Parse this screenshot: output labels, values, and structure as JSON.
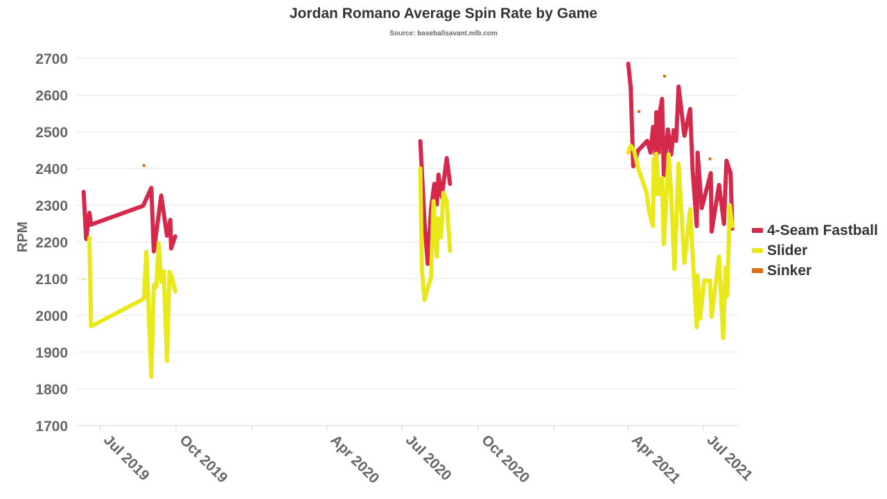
{
  "chart_data": {
    "type": "line",
    "title": "Jordan Romano Average Spin Rate by Game",
    "subtitle": "Source: baseballsavant.mlb.com",
    "ylabel": "RPM",
    "xlabel": "",
    "ylim": [
      1700,
      2700
    ],
    "yticks": [
      1700,
      1800,
      1900,
      2000,
      2100,
      2200,
      2300,
      2400,
      2500,
      2600,
      2700
    ],
    "xlim": [
      "2019-06-02",
      "2021-08-12"
    ],
    "xticks": [
      {
        "date": "2019-07-01",
        "label": "Jul 2019"
      },
      {
        "date": "2019-10-01",
        "label": "Oct 2019"
      },
      {
        "date": "2020-01-01",
        "label": ""
      },
      {
        "date": "2020-04-01",
        "label": "Apr 2020"
      },
      {
        "date": "2020-07-01",
        "label": "Jul 2020"
      },
      {
        "date": "2020-10-01",
        "label": "Oct 2020"
      },
      {
        "date": "2021-01-01",
        "label": ""
      },
      {
        "date": "2021-04-01",
        "label": "Apr 2021"
      },
      {
        "date": "2021-07-01",
        "label": "Jul 2021"
      }
    ],
    "grid": true,
    "legend_position": "right",
    "series": [
      {
        "name": "4-Seam Fastball",
        "color": "#d4294b",
        "points": [
          [
            "2019-06-11",
            2336
          ],
          [
            "2019-06-14",
            2208
          ],
          [
            "2019-06-18",
            2279
          ],
          [
            "2019-06-20",
            2247
          ],
          [
            "2019-08-22",
            2298
          ],
          [
            "2019-09-01",
            2347
          ],
          [
            "2019-09-04",
            2174
          ],
          [
            "2019-09-13",
            2326
          ],
          [
            "2019-09-20",
            2217
          ],
          [
            "2019-09-24",
            2260
          ],
          [
            "2019-09-25",
            2182
          ],
          [
            "2019-09-30",
            2215
          ],
          null,
          [
            "2020-07-23",
            2474
          ],
          [
            "2020-07-28",
            2255
          ],
          [
            "2020-08-01",
            2140
          ],
          [
            "2020-08-05",
            2292
          ],
          [
            "2020-08-09",
            2358
          ],
          [
            "2020-08-12",
            2302
          ],
          [
            "2020-08-14",
            2383
          ],
          [
            "2020-08-18",
            2321
          ],
          [
            "2020-08-20",
            2358
          ],
          [
            "2020-08-24",
            2428
          ],
          [
            "2020-08-28",
            2358
          ],
          null,
          [
            "2021-04-01",
            2685
          ],
          [
            "2021-04-04",
            2619
          ],
          [
            "2021-04-07",
            2406
          ],
          [
            "2021-04-13",
            2449
          ],
          [
            "2021-04-24",
            2475
          ],
          [
            "2021-04-28",
            2443
          ],
          [
            "2021-05-01",
            2513
          ],
          [
            "2021-05-04",
            2438
          ],
          [
            "2021-05-05",
            2553
          ],
          [
            "2021-05-08",
            2443
          ],
          [
            "2021-05-09",
            2551
          ],
          [
            "2021-05-12",
            2589
          ],
          [
            "2021-05-14",
            2381
          ],
          [
            "2021-05-19",
            2506
          ],
          [
            "2021-05-23",
            2438
          ],
          [
            "2021-05-26",
            2504
          ],
          [
            "2021-05-29",
            2475
          ],
          [
            "2021-06-01",
            2623
          ],
          [
            "2021-06-08",
            2489
          ],
          [
            "2021-06-15",
            2562
          ],
          [
            "2021-06-18",
            2394
          ],
          [
            "2021-06-23",
            2243
          ],
          [
            "2021-06-24",
            2443
          ],
          [
            "2021-06-29",
            2292
          ],
          [
            "2021-07-10",
            2387
          ],
          [
            "2021-07-11",
            2228
          ],
          [
            "2021-07-20",
            2355
          ],
          [
            "2021-07-26",
            2249
          ],
          [
            "2021-07-29",
            2421
          ],
          [
            "2021-08-03",
            2387
          ],
          [
            "2021-08-05",
            2236
          ]
        ]
      },
      {
        "name": "Slider",
        "color": "#e8e81a",
        "points": [
          [
            "2019-06-11",
            2098
          ],
          null,
          [
            "2019-06-18",
            2211
          ],
          [
            "2019-06-20",
            1970
          ],
          [
            "2019-08-23",
            2045
          ],
          [
            "2019-08-26",
            2173
          ],
          [
            "2019-09-01",
            1833
          ],
          [
            "2019-09-04",
            2083
          ],
          [
            "2019-09-07",
            2077
          ],
          [
            "2019-09-10",
            2196
          ],
          [
            "2019-09-13",
            2092
          ],
          [
            "2019-09-16",
            2120
          ],
          [
            "2019-09-20",
            1876
          ],
          [
            "2019-09-23",
            2118
          ],
          [
            "2019-09-26",
            2105
          ],
          [
            "2019-09-30",
            2065
          ],
          null,
          [
            "2020-07-23",
            2400
          ],
          [
            "2020-07-25",
            2123
          ],
          [
            "2020-07-28",
            2042
          ],
          [
            "2020-08-05",
            2104
          ],
          [
            "2020-08-08",
            2311
          ],
          [
            "2020-08-12",
            2160
          ],
          [
            "2020-08-14",
            2264
          ],
          [
            "2020-08-17",
            2213
          ],
          [
            "2020-08-20",
            2334
          ],
          [
            "2020-08-24",
            2311
          ],
          [
            "2020-08-28",
            2175
          ],
          null,
          [
            "2021-04-01",
            2443
          ],
          [
            "2021-04-04",
            2462
          ],
          [
            "2021-04-08",
            2449
          ],
          [
            "2021-04-13",
            2400
          ],
          [
            "2021-04-23",
            2336
          ],
          [
            "2021-04-27",
            2274
          ],
          [
            "2021-05-01",
            2243
          ],
          [
            "2021-05-02",
            2426
          ],
          [
            "2021-05-04",
            2330
          ],
          [
            "2021-05-05",
            2440
          ],
          [
            "2021-05-08",
            2330
          ],
          [
            "2021-05-12",
            2374
          ],
          [
            "2021-05-14",
            2194
          ],
          [
            "2021-05-20",
            2438
          ],
          [
            "2021-05-23",
            2330
          ],
          [
            "2021-05-27",
            2126
          ],
          [
            "2021-06-01",
            2413
          ],
          [
            "2021-06-08",
            2143
          ],
          [
            "2021-06-15",
            2289
          ],
          [
            "2021-06-23",
            1968
          ],
          [
            "2021-06-24",
            2109
          ],
          [
            "2021-06-27",
            1991
          ],
          [
            "2021-07-02",
            2094
          ],
          [
            "2021-07-09",
            2094
          ],
          [
            "2021-07-11",
            1996
          ],
          [
            "2021-07-20",
            2160
          ],
          [
            "2021-07-25",
            1938
          ],
          [
            "2021-07-28",
            2130
          ],
          [
            "2021-07-30",
            2053
          ],
          [
            "2021-08-02",
            2300
          ],
          [
            "2021-08-05",
            2243
          ]
        ]
      },
      {
        "name": "Sinker",
        "color": "#e06c10",
        "points": [
          [
            "2019-08-23",
            2408
          ],
          null,
          [
            "2021-04-14",
            2555
          ],
          null,
          [
            "2021-05-15",
            2651
          ],
          null,
          [
            "2021-07-09",
            2426
          ]
        ]
      }
    ]
  }
}
